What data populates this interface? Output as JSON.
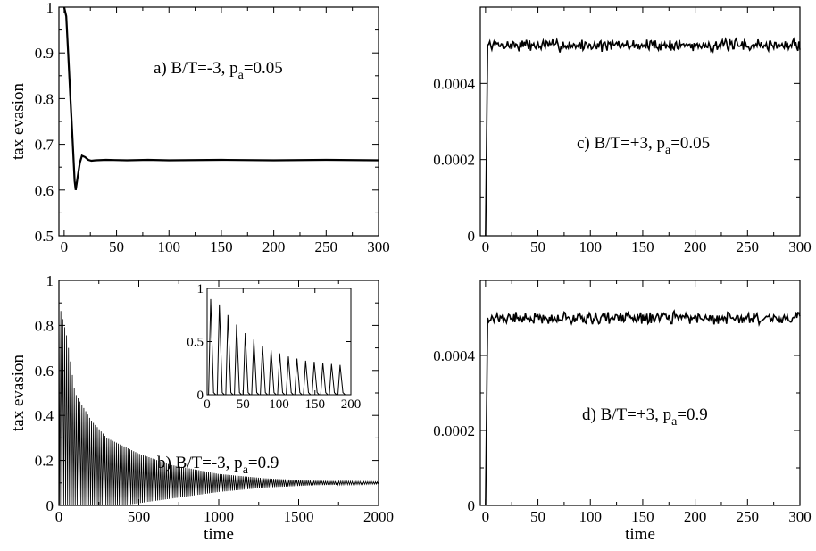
{
  "chart_data": [
    {
      "id": "a",
      "type": "line",
      "annotation": {
        "text": "a) B/T=-3, p",
        "sub": "a",
        "tail": "=0.05"
      },
      "xlabel": "",
      "ylabel": "tax evasion",
      "xlim": [
        -5,
        300
      ],
      "ylim": [
        0.5,
        1.0
      ],
      "xticks": [
        0,
        50,
        100,
        150,
        200,
        250,
        300
      ],
      "xtick_labels": [
        "0",
        "50",
        "100",
        "150",
        "200",
        "250",
        "300"
      ],
      "yticks": [
        0.5,
        0.6,
        0.7,
        0.8,
        0.9,
        1.0
      ],
      "ytick_labels": [
        "0.5",
        "0.6",
        "0.7",
        "0.8",
        "0.9",
        "1"
      ],
      "series": [
        {
          "x": [
            0,
            2,
            4,
            6,
            8,
            10,
            11,
            13,
            15,
            17,
            20,
            23,
            26,
            30,
            40,
            60,
            80,
            100,
            150,
            200,
            250,
            300
          ],
          "y": [
            1.0,
            0.98,
            0.89,
            0.8,
            0.71,
            0.62,
            0.6,
            0.63,
            0.66,
            0.675,
            0.672,
            0.666,
            0.664,
            0.665,
            0.666,
            0.665,
            0.666,
            0.665,
            0.666,
            0.665,
            0.666,
            0.665
          ]
        }
      ]
    },
    {
      "id": "b",
      "type": "line",
      "annotation": {
        "text": "b) B/T=-3, p",
        "sub": "a",
        "tail": "=0.9"
      },
      "xlabel": "time",
      "ylabel": "tax evasion",
      "xlim": [
        0,
        2000
      ],
      "ylim": [
        0,
        1
      ],
      "xticks": [
        0,
        500,
        1000,
        1500,
        2000
      ],
      "xtick_labels": [
        "0",
        "500",
        "1000",
        "1500",
        "2000"
      ],
      "yticks": [
        0,
        0.2,
        0.4,
        0.6,
        0.8,
        1.0
      ],
      "ytick_labels": [
        "0",
        "0.2",
        "0.4",
        "0.6",
        "0.8",
        "1"
      ],
      "oscillation": {
        "period": 12,
        "peak_envelope_t": [
          0,
          50,
          100,
          200,
          300,
          500,
          700,
          1000,
          1300,
          1600,
          2000
        ],
        "peak_envelope_y": [
          0.9,
          0.75,
          0.5,
          0.38,
          0.3,
          0.23,
          0.18,
          0.14,
          0.12,
          0.11,
          0.105
        ],
        "trough_envelope_t": [
          0,
          100,
          200,
          400,
          600,
          800,
          1000,
          1300,
          1600,
          2000
        ],
        "trough_envelope_y": [
          0.0,
          0.0,
          0.0,
          0.0,
          0.02,
          0.04,
          0.06,
          0.08,
          0.09,
          0.095
        ]
      },
      "inset": {
        "xlim": [
          0,
          200
        ],
        "ylim": [
          0,
          1
        ],
        "xticks": [
          0,
          50,
          100,
          150,
          200
        ],
        "xtick_labels": [
          "0",
          "50",
          "100",
          "150",
          "200"
        ],
        "yticks": [
          0,
          0.5,
          1
        ],
        "ytick_labels": [
          "0",
          "0.5",
          "1"
        ],
        "period": 12,
        "peaks": [
          0.9,
          0.85,
          0.75,
          0.66,
          0.58,
          0.52,
          0.46,
          0.42,
          0.39,
          0.36,
          0.34,
          0.32,
          0.31,
          0.3,
          0.29,
          0.28
        ]
      }
    },
    {
      "id": "c",
      "type": "line",
      "annotation": {
        "text": "c) B/T=+3, p",
        "sub": "a",
        "tail": "=0.05"
      },
      "xlabel": "",
      "ylabel": "",
      "xlim": [
        -5,
        300
      ],
      "ylim": [
        0,
        0.0006
      ],
      "xticks": [
        0,
        50,
        100,
        150,
        200,
        250,
        300
      ],
      "xtick_labels": [
        "0",
        "50",
        "100",
        "150",
        "200",
        "250",
        "300"
      ],
      "yticks": [
        0,
        0.0002,
        0.0004
      ],
      "ytick_labels": [
        "0",
        "0.0002",
        "0.0004"
      ],
      "series": [
        {
          "start": [
            0,
            0
          ],
          "jump_to": [
            2,
            0.0005
          ],
          "mean": 0.0005,
          "noise": 1.2e-05,
          "seed": 7
        }
      ]
    },
    {
      "id": "d",
      "type": "line",
      "annotation": {
        "text": "d) B/T=+3, p",
        "sub": "a",
        "tail": "=0.9"
      },
      "xlabel": "time",
      "ylabel": "",
      "xlim": [
        -5,
        300
      ],
      "ylim": [
        0,
        0.0006
      ],
      "xticks": [
        0,
        50,
        100,
        150,
        200,
        250,
        300
      ],
      "xtick_labels": [
        "0",
        "50",
        "100",
        "150",
        "200",
        "250",
        "300"
      ],
      "yticks": [
        0,
        0.0002,
        0.0004
      ],
      "ytick_labels": [
        "0",
        "0.0002",
        "0.0004"
      ],
      "series": [
        {
          "start": [
            0,
            0
          ],
          "jump_to": [
            2,
            0.0005
          ],
          "mean": 0.0005,
          "noise": 1.2e-05,
          "seed": 21
        }
      ]
    }
  ]
}
